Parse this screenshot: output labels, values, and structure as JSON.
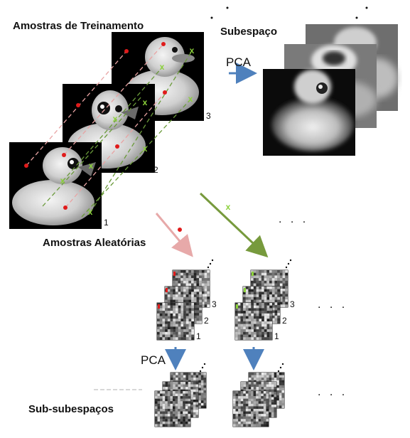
{
  "labels": {
    "training_samples": "Amostras de Treinamento",
    "subspace": "Subespaço",
    "pca_top": "PCA",
    "random_samples": "Amostras Aleatórias",
    "pca_bottom": "PCA",
    "sub_subspaces": "Sub-subespaços"
  },
  "sample_indices": [
    "1",
    "2",
    "3"
  ],
  "ellipsis": ". . .",
  "markers": {
    "point": "•",
    "cross": "x"
  },
  "colors": {
    "point_red": "#e01b1b",
    "cross_green": "#8bd13a",
    "pink_line": "#e8a3a3",
    "green_line": "#6a9a3a",
    "arrow_blue": "#4f81bd",
    "arrow_pink": "#e7a9a9",
    "arrow_green": "#779a3d"
  }
}
